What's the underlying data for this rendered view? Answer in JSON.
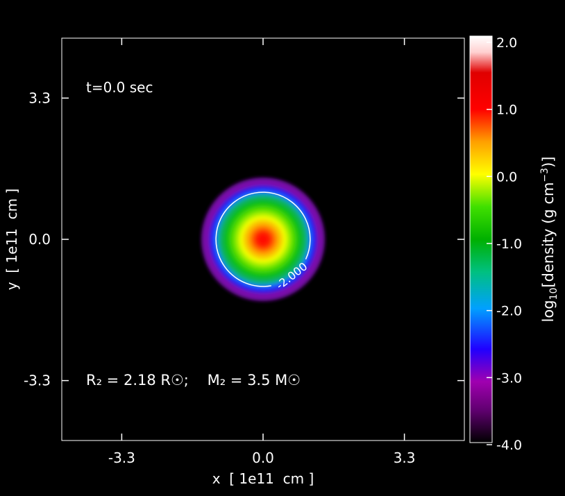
{
  "chart_data": {
    "type": "heatmap",
    "annotation_time": "t=0.0 sec",
    "annotation_params": "R₂ = 2.18 R☉;    M₂ = 3.5 M☉",
    "x_ticks": [
      {
        "value": -3.3,
        "label": "-3.3"
      },
      {
        "value": 0.0,
        "label": "0.0"
      },
      {
        "value": 3.3,
        "label": "3.3"
      }
    ],
    "y_ticks": [
      {
        "value": 3.3,
        "label": "3.3"
      },
      {
        "value": 0.0,
        "label": "0.0"
      },
      {
        "value": -3.3,
        "label": "-3.3"
      }
    ],
    "xlabel": "x  [ 1e11  cm ]",
    "ylabel": "y  [ 1e11  cm ]",
    "xlim": [
      -4.7,
      4.7
    ],
    "ylim": [
      -4.7,
      4.7
    ],
    "colorbar": {
      "min": -4.0,
      "max": 2.0,
      "ticks": [
        {
          "value": 2.0,
          "label": "2.0"
        },
        {
          "value": 1.0,
          "label": "1.0"
        },
        {
          "value": 0.0,
          "label": "0.0"
        },
        {
          "value": -1.0,
          "label": "-1.0"
        },
        {
          "value": -2.0,
          "label": "-2.0"
        },
        {
          "value": -3.0,
          "label": "-3.0"
        },
        {
          "value": -4.0,
          "label": "-4.0"
        }
      ],
      "label_prefix": "log",
      "label_sub": "10",
      "label_main": "[density (g cm",
      "label_sup": "−3",
      "label_suffix": ")]",
      "colors": [
        "#000000",
        "#8800aa",
        "#0000ff",
        "#00c8ff",
        "#00d000",
        "#ffff00",
        "#ffa000",
        "#ff0000",
        "#ffffff"
      ]
    },
    "star": {
      "center": [
        0.0,
        0.0
      ],
      "radius": 1.5,
      "central_log_density": 1.0
    },
    "contour": {
      "level": -2.0,
      "label": "-2.000",
      "radius": 1.1
    }
  }
}
